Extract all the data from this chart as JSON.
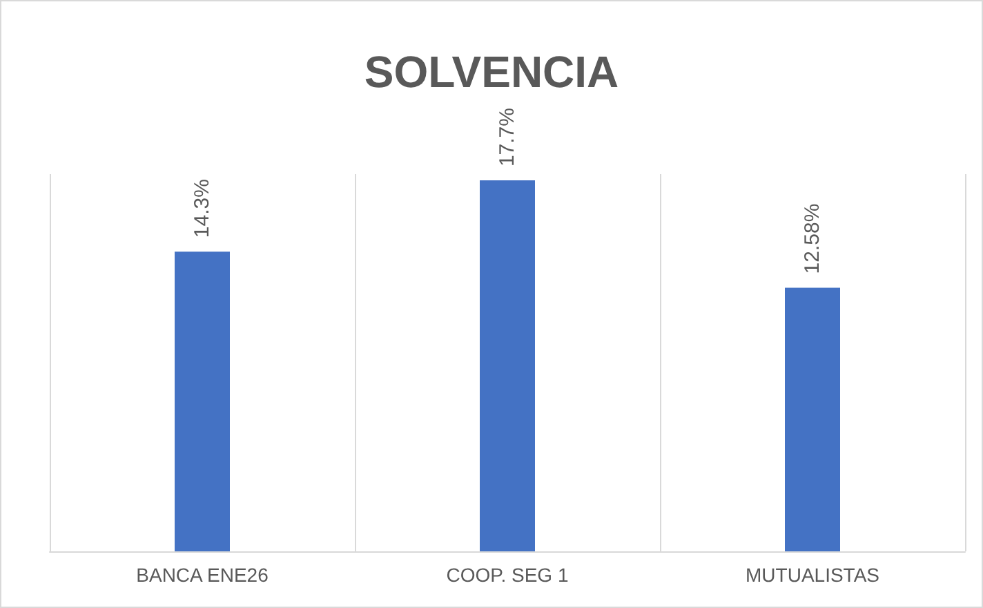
{
  "chart_data": {
    "type": "bar",
    "title": "SOLVENCIA",
    "categories": [
      "BANCA ENE26",
      "COOP. SEG 1",
      "MUTUALISTAS"
    ],
    "values": [
      14.3,
      17.7,
      12.58
    ],
    "value_labels": [
      "14.3%",
      "17.7%",
      "12.58%"
    ],
    "color": "#4472c4",
    "grid": "x"
  }
}
